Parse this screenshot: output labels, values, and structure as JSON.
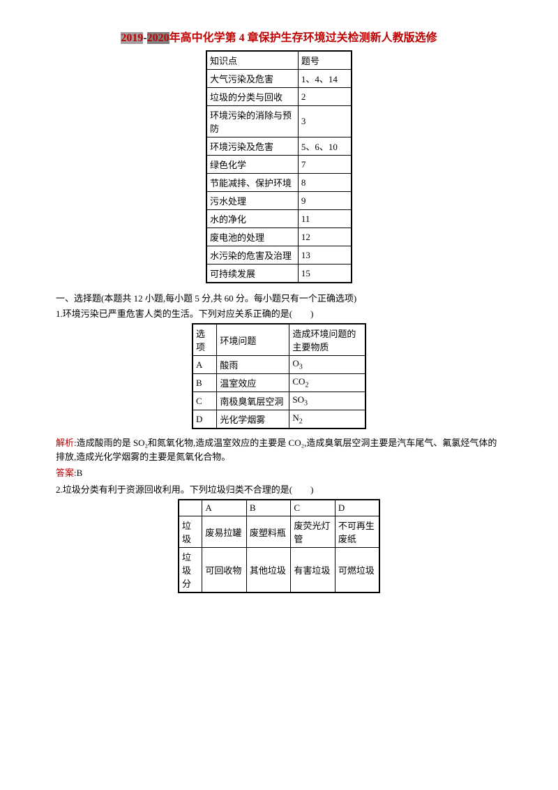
{
  "title": {
    "y2019": "2019",
    "dash": "-",
    "y2020": "2020",
    "part1": "年高中化学第",
    "num4": " 4 ",
    "part2": "章保护生存环境过关检测新人教版选修"
  },
  "knowledge_table": {
    "header": [
      "知识点",
      "题号"
    ],
    "rows": [
      [
        "大气污染及危害",
        "1、4、14"
      ],
      [
        "垃圾的分类与回收",
        "2"
      ],
      [
        "环境污染的消除与预防",
        "3"
      ],
      [
        "环境污染及危害",
        "5、6、10"
      ],
      [
        "绿色化学",
        "7"
      ],
      [
        "节能减排、保护环境",
        "8"
      ],
      [
        "污水处理",
        "9"
      ],
      [
        "水的净化",
        "11"
      ],
      [
        "废电池的处理",
        "12"
      ],
      [
        "水污染的危害及治理",
        "13"
      ],
      [
        "可持续发展",
        "15"
      ]
    ]
  },
  "section1": "一、选择题(本题共 12 小题,每小题 5 分,共 60 分。每小题只有一个正确选项)",
  "q1": {
    "text": "1.环境污染已严重危害人类的生活。下列对应关系正确的是(　　)",
    "header": [
      "选项",
      "环境问题",
      "造成环境问题的主要物质"
    ],
    "rows": [
      {
        "opt": "A",
        "problem": "酸雨",
        "substance_base": "O",
        "substance_sub": "3"
      },
      {
        "opt": "B",
        "problem": "温室效应",
        "substance_base": "CO",
        "substance_sub": "2"
      },
      {
        "opt": "C",
        "problem": "南极臭氧层空洞",
        "substance_base": "SO",
        "substance_sub": "3"
      },
      {
        "opt": "D",
        "problem": "光化学烟雾",
        "substance_base": "N",
        "substance_sub": "2"
      }
    ]
  },
  "analysis1": {
    "label": "解析",
    "text": ":造成酸雨的是 SO₂和氮氧化物,造成温室效应的主要是 CO₂,造成臭氧层空洞主要是汽车尾气、氟氯烃气体的排放,造成光化学烟雾的主要是氮氧化合物。"
  },
  "answer1": {
    "label": "答案",
    "text": ":B"
  },
  "q2": {
    "text": "2.垃圾分类有利于资源回收利用。下列垃圾归类不合理的是(　　)",
    "header_row": [
      "",
      "A",
      "B",
      "C",
      "D"
    ],
    "row1": [
      "垃圾",
      "废易拉罐",
      "废塑料瓶",
      "废荧光灯管",
      "不可再生废纸"
    ],
    "row2": [
      "垃圾分",
      "可回收物",
      "其他垃圾",
      "有害垃圾",
      "可燃垃圾"
    ]
  }
}
